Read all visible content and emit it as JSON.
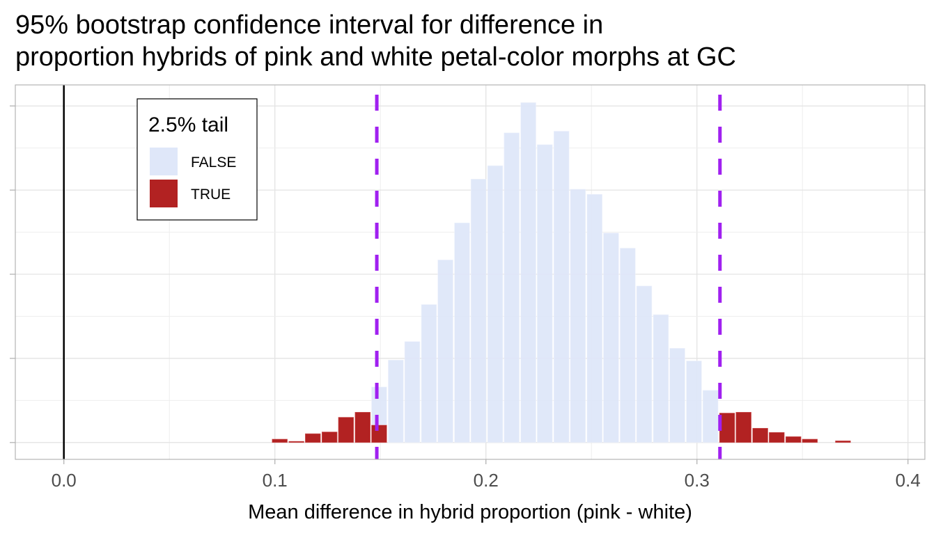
{
  "chart_data": {
    "type": "bar",
    "title": "95% bootstrap confidence interval for difference in proportion hybrids of pink and white petal-color morphs at GC",
    "title_lines": [
      "95% bootstrap confidence interval for difference in",
      "proportion hybrids of pink and white petal-color morphs at GC"
    ],
    "xlabel": "Mean difference in hybrid proportion (pink - white)",
    "ylabel": "",
    "xlim": [
      -0.023,
      0.408
    ],
    "ylim": [
      -20,
      425
    ],
    "x_ticks": [
      0.0,
      0.1,
      0.2,
      0.3,
      0.4
    ],
    "x_tick_labels": [
      "0.0",
      "0.1",
      "0.2",
      "0.3",
      "0.4"
    ],
    "y_ticks": [
      0,
      100,
      200,
      300,
      400
    ],
    "y_tick_labels_shown": false,
    "grid": true,
    "bin_centers": [
      0.1023,
      0.1102,
      0.118,
      0.1259,
      0.1337,
      0.1416,
      0.1494,
      0.1573,
      0.1651,
      0.173,
      0.1808,
      0.1887,
      0.1965,
      0.2044,
      0.2122,
      0.2201,
      0.2279,
      0.2358,
      0.2436,
      0.2515,
      0.2593,
      0.2672,
      0.275,
      0.2829,
      0.2907,
      0.2986,
      0.3064,
      0.3143,
      0.3221,
      0.33,
      0.3378,
      0.3457,
      0.3535,
      0.3614,
      0.3692
    ],
    "bin_width": 0.00785,
    "series": [
      {
        "name": "TRUE",
        "color": "#b22222",
        "values": [
          4,
          1.4,
          10.5,
          12.6,
          30,
          36,
          21,
          0,
          0,
          0,
          0,
          0,
          0,
          0,
          0,
          0,
          0,
          0,
          0,
          0,
          0,
          0,
          0,
          0,
          0,
          0,
          0,
          35,
          36,
          17,
          12,
          7,
          4,
          0,
          2
        ]
      },
      {
        "name": "FALSE",
        "color": "#dfe7f9",
        "values": [
          0,
          0,
          0,
          0,
          0,
          0,
          45,
          98,
          120,
          164,
          217,
          261,
          313,
          329,
          368,
          404,
          354,
          370,
          301,
          295,
          249,
          231,
          186,
          152,
          112,
          97,
          62,
          0,
          0,
          0,
          0,
          0,
          0,
          0,
          0
        ]
      }
    ],
    "stacked": true,
    "legend": {
      "title": "2.5% tail",
      "placement": "top-left",
      "entries": [
        "FALSE",
        "TRUE"
      ]
    },
    "reference_lines": [
      {
        "x": 0.0,
        "style": "solid",
        "color": "#000000"
      },
      {
        "x": 0.1483,
        "style": "dashed",
        "color": "#a020f0"
      },
      {
        "x": 0.3109,
        "style": "dashed",
        "color": "#a020f0"
      }
    ]
  }
}
